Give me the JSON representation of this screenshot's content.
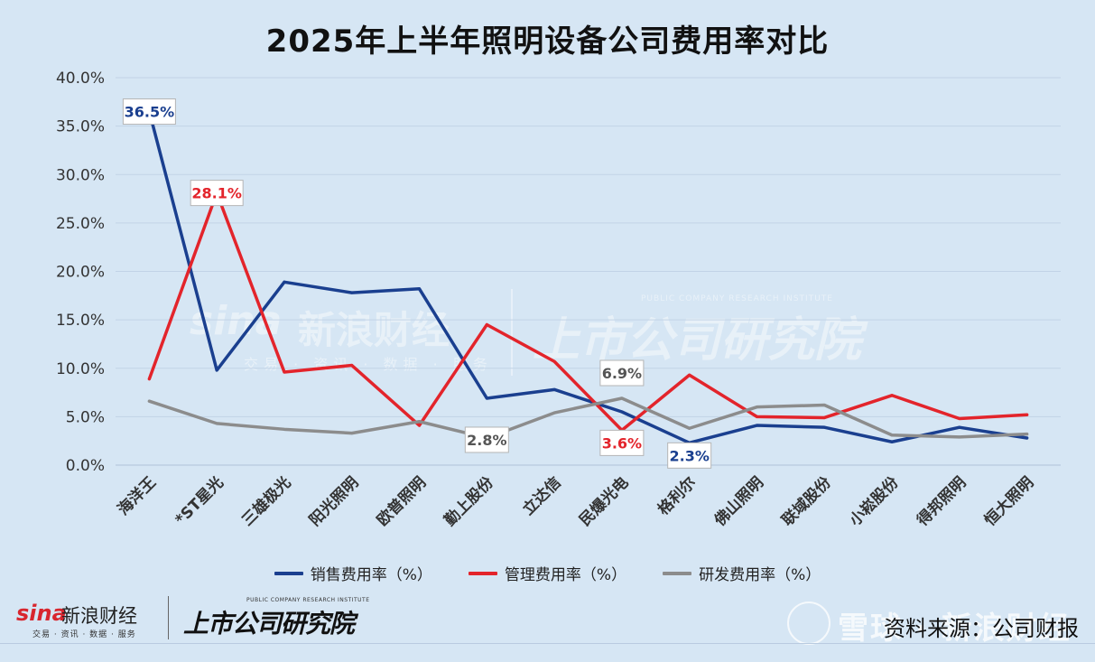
{
  "title": "2025年上半年照明设备公司费用率对比",
  "chart_data": {
    "type": "line",
    "title": "2025年上半年照明设备公司费用率对比",
    "categories": [
      "海洋王",
      "*ST星光",
      "三雄极光",
      "阳光照明",
      "欧普照明",
      "勤上股份",
      "立达信",
      "民爆光电",
      "格利尔",
      "佛山照明",
      "联域股份",
      "小崧股份",
      "得邦照明",
      "恒大照明"
    ],
    "y_ticks": [
      "0.0%",
      "5.0%",
      "10.0%",
      "15.0%",
      "20.0%",
      "25.0%",
      "30.0%",
      "35.0%",
      "40.0%"
    ],
    "ylim": [
      0,
      40
    ],
    "grid": true,
    "legend_position": "bottom",
    "series": [
      {
        "name": "销售费用率（%）",
        "color": "#1a3f8f",
        "values": [
          36.5,
          9.8,
          18.9,
          17.8,
          18.2,
          6.9,
          7.8,
          5.5,
          2.3,
          4.1,
          3.9,
          2.4,
          3.9,
          2.8
        ],
        "labels": [
          {
            "index": 0,
            "text": "36.5%"
          },
          {
            "index": 8,
            "text": "2.3%"
          }
        ]
      },
      {
        "name": "管理费用率（%）",
        "color": "#e3242b",
        "values": [
          8.9,
          28.1,
          9.6,
          10.3,
          4.1,
          14.5,
          10.7,
          3.6,
          9.3,
          5.0,
          4.9,
          7.2,
          4.8,
          5.2
        ],
        "labels": [
          {
            "index": 1,
            "text": "28.1%"
          },
          {
            "index": 7,
            "text": "3.6%"
          }
        ]
      },
      {
        "name": "研发费用率（%）",
        "color": "#8c8c8c",
        "values": [
          6.6,
          4.3,
          3.7,
          3.3,
          4.5,
          2.8,
          5.4,
          6.9,
          3.8,
          6.0,
          6.2,
          3.1,
          2.9,
          3.2
        ],
        "labels": [
          {
            "index": 5,
            "text": "2.8%"
          },
          {
            "index": 7,
            "text": "6.9%"
          }
        ]
      }
    ]
  },
  "watermark": {
    "sina_word": "sina",
    "sina_cn": "新浪财经",
    "sina_sub": "交易 · 资讯 · 数据 · 服务",
    "institute_cn": "上市公司研究院",
    "institute_en": "PUBLIC COMPANY RESEARCH INSTITUTE",
    "site": "雪球 · 新浪财经"
  },
  "source_note": "资料来源：公司财报"
}
